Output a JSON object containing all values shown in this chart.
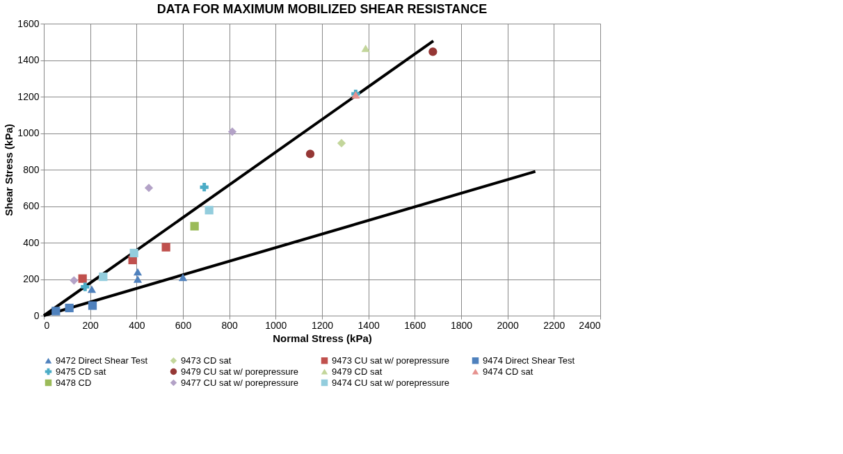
{
  "chart_data": {
    "type": "scatter",
    "title": "DATA FOR MAXIMUM MOBILIZED SHEAR RESISTANCE",
    "xlabel": "Normal Stress (kPa)",
    "ylabel": "Shear Stress (kPa)",
    "xlim": [
      0,
      2400
    ],
    "xticks": [
      0,
      200,
      400,
      600,
      800,
      1000,
      1200,
      1400,
      1600,
      1800,
      2000,
      2200,
      2400
    ],
    "ylim": [
      0,
      1600
    ],
    "yticks": [
      0,
      200,
      400,
      600,
      800,
      1000,
      1200,
      1400,
      1600
    ],
    "grid": true,
    "legend": "bottom",
    "series": [
      {
        "name": "9472 Direct Shear Test",
        "color": "#4f81bd",
        "marker": "triangle",
        "x": [
          207,
          405,
          405,
          600
        ],
        "values": [
          145,
          240,
          200,
          210
        ]
      },
      {
        "name": "9473 CD sat",
        "color": "#c3d69b",
        "marker": "diamond",
        "x": [
          1284
        ],
        "values": [
          945
        ]
      },
      {
        "name": "9473 CU sat w/ porepressure",
        "color": "#c0504d",
        "marker": "square",
        "x": [
          167,
          383,
          527
        ],
        "values": [
          203,
          305,
          375
        ]
      },
      {
        "name": "9474 Direct Shear Test",
        "color": "#4f81bd",
        "marker": "square",
        "x": [
          52,
          110,
          210
        ],
        "values": [
          25,
          42,
          55
        ]
      },
      {
        "name": "9475 CD sat",
        "color": "#4bacc6",
        "marker": "cross",
        "x": [
          178,
          692,
          1345
        ],
        "values": [
          158,
          704,
          1215
        ]
      },
      {
        "name": "9479 CU sat w/ porepressure",
        "color": "#953735",
        "marker": "circle",
        "x": [
          1149,
          1678
        ],
        "values": [
          886,
          1446
        ]
      },
      {
        "name": "9479 CD sat",
        "color": "#c3d69b",
        "marker": "triangle",
        "x": [
          1388
        ],
        "values": [
          1465
        ]
      },
      {
        "name": "9474 CD sat",
        "color": "#e6928f",
        "marker": "triangle",
        "x": [
          1345
        ],
        "values": [
          1210
        ]
      },
      {
        "name": "9478 CD",
        "color": "#9bbb59",
        "marker": "square",
        "x": [
          650
        ],
        "values": [
          490
        ]
      },
      {
        "name": "9477 CU sat w/ porepressure",
        "color": "#b3a2c7",
        "marker": "diamond",
        "x": [
          130,
          453,
          813
        ],
        "values": [
          193,
          700,
          1008
        ]
      },
      {
        "name": "9474 CU sat w/ porepressure",
        "color": "#93cddd",
        "marker": "square",
        "x": [
          256,
          389,
          713
        ],
        "values": [
          213,
          343,
          578
        ]
      },
      {
        "type": "line",
        "color": "#000000",
        "x": [
          0,
          1680
        ],
        "values": [
          0,
          1505
        ]
      },
      {
        "type": "line",
        "color": "#000000",
        "x": [
          0,
          2120
        ],
        "values": [
          0,
          790
        ]
      }
    ]
  }
}
